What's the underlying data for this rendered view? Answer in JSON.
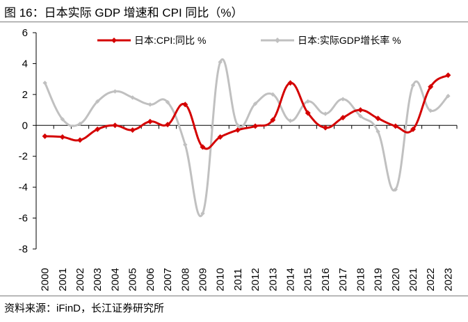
{
  "figure": {
    "title": "图 16：日本实际 GDP 增速和 CPI 同比（%）",
    "source": "资料来源：iFinD，长江证券研究所"
  },
  "chart_data": {
    "type": "line",
    "title": "日本实际 GDP 增速和 CPI 同比（%）",
    "xlabel": "",
    "ylabel": "",
    "ylim": [
      -8,
      6
    ],
    "yticks": [
      "6",
      "4",
      "2",
      "0",
      "-2",
      "-4",
      "-6",
      "-8"
    ],
    "x": [
      "2000",
      "2001",
      "2002",
      "2003",
      "2004",
      "2005",
      "2006",
      "2007",
      "2008",
      "2009",
      "2010",
      "2011",
      "2012",
      "2013",
      "2014",
      "2015",
      "2016",
      "2017",
      "2018",
      "2019",
      "2020",
      "2021",
      "2022",
      "2023"
    ],
    "series": [
      {
        "name": "日本:CPI:同比 %",
        "color": "#d40000",
        "marker": "diamond",
        "values": [
          -0.7,
          -0.75,
          -0.95,
          -0.25,
          0.0,
          -0.3,
          0.25,
          0.05,
          1.35,
          -1.4,
          -0.75,
          -0.3,
          -0.05,
          0.35,
          2.75,
          0.8,
          -0.15,
          0.5,
          1.0,
          0.45,
          -0.05,
          -0.25,
          2.5,
          3.25
        ]
      },
      {
        "name": "日本:实际GDP增长率 %",
        "color": "#c0c0c0",
        "marker": "diamond",
        "values": [
          2.75,
          0.4,
          0.1,
          1.55,
          2.2,
          1.8,
          1.35,
          1.5,
          -1.25,
          -5.7,
          4.1,
          0.0,
          1.4,
          2.0,
          0.3,
          1.55,
          0.75,
          1.7,
          0.6,
          -0.4,
          -4.15,
          2.6,
          0.95,
          1.9
        ]
      }
    ],
    "legend_position": "top",
    "grid": false
  }
}
